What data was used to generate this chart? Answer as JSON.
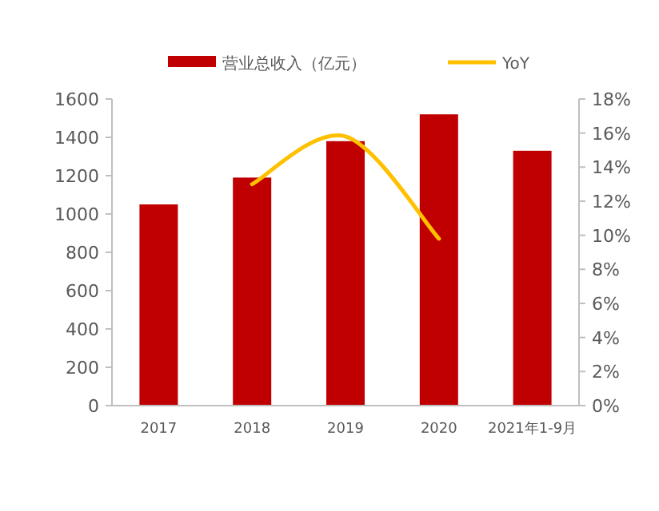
{
  "chart_data": {
    "type": "bar",
    "categories": [
      "2017",
      "2018",
      "2019",
      "2020",
      "2021年1-9月"
    ],
    "series": [
      {
        "name": "营业总收入（亿元）",
        "color": "#c00000",
        "values": [
          1050,
          1190,
          1380,
          1520,
          1330
        ]
      },
      {
        "name": "YoY",
        "type": "line",
        "axis": "y2",
        "color": "#ffc000",
        "values": [
          null,
          13.0,
          15.8,
          9.8,
          null
        ]
      }
    ],
    "ylim": [
      0,
      1600
    ],
    "yticks": [
      0,
      200,
      400,
      600,
      800,
      1000,
      1200,
      1400,
      1600
    ],
    "y2lim": [
      0,
      18
    ],
    "y2ticks": [
      {
        "value": 0,
        "label": "0%"
      },
      {
        "value": 2,
        "label": "2%"
      },
      {
        "value": 4,
        "label": "4%"
      },
      {
        "value": 6,
        "label": "6%"
      },
      {
        "value": 8,
        "label": "8%"
      },
      {
        "value": 10,
        "label": "10%"
      },
      {
        "value": 12,
        "label": "12%"
      },
      {
        "value": 14,
        "label": "14%"
      },
      {
        "value": 16,
        "label": "16%"
      },
      {
        "value": 18,
        "label": "18%"
      }
    ],
    "legend": "top",
    "grid": false
  }
}
